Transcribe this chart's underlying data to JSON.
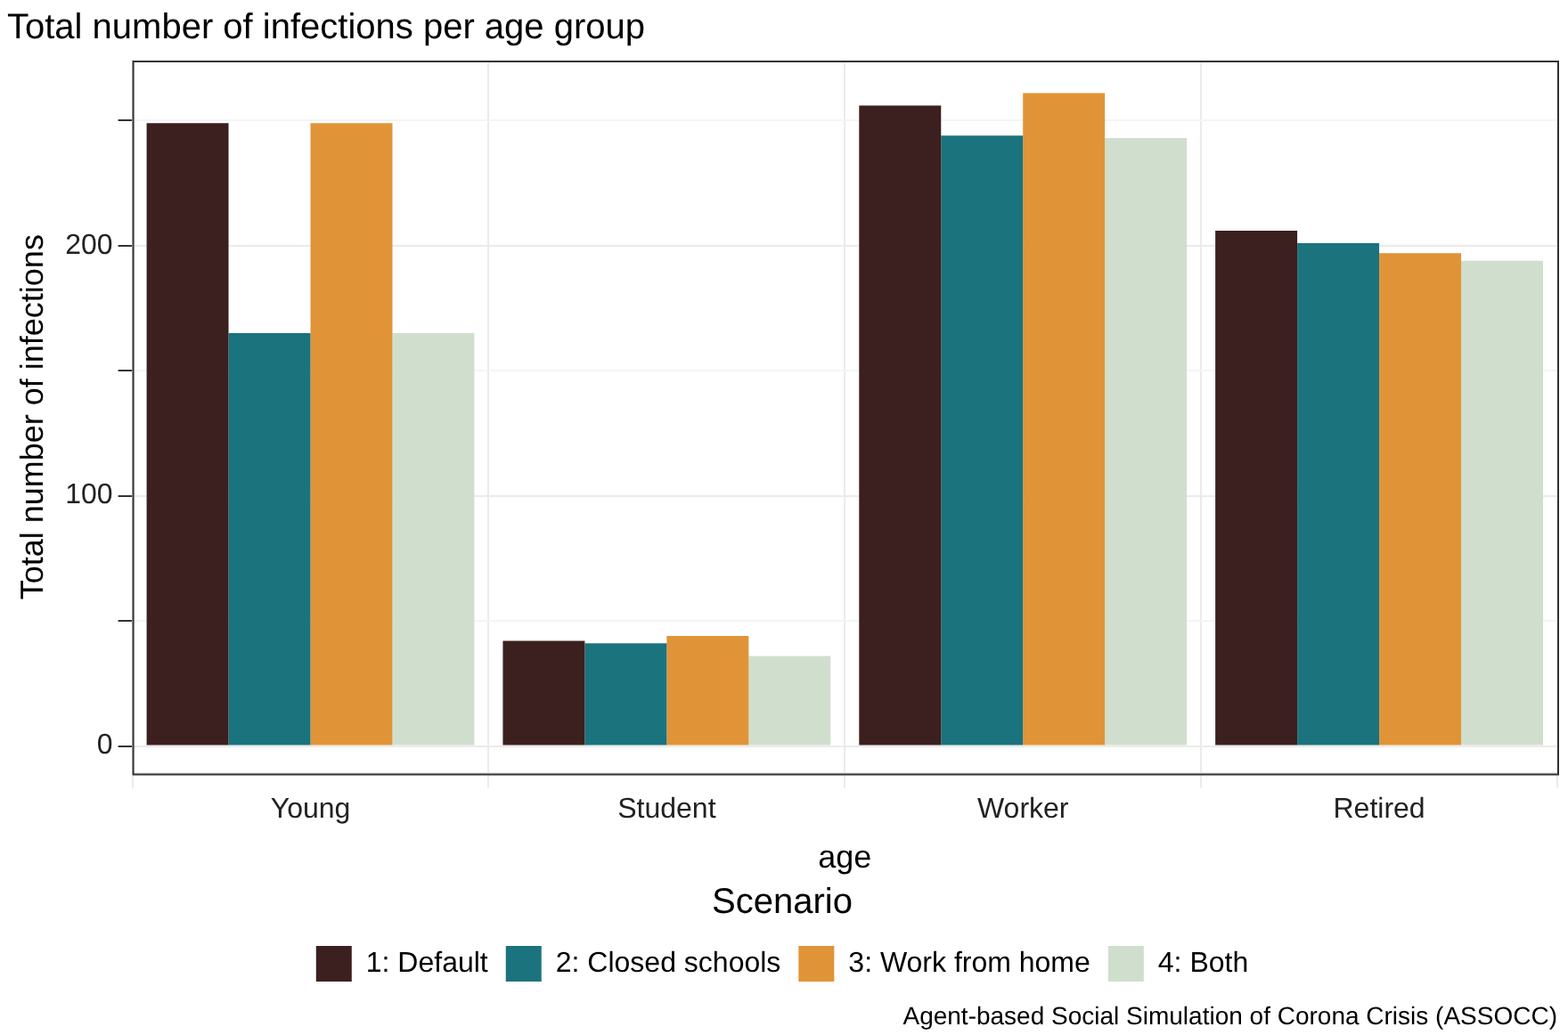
{
  "chart_data": {
    "type": "bar",
    "title": "Total number of infections per age group",
    "xlabel": "age",
    "ylabel": "Total number of infections",
    "legend_title": "Scenario",
    "categories": [
      "Young",
      "Student",
      "Worker",
      "Retired"
    ],
    "series": [
      {
        "name": "1: Default",
        "color": "#3c1f1f",
        "values": [
          249,
          42,
          256,
          206
        ]
      },
      {
        "name": "2: Closed schools",
        "color": "#1b737d",
        "values": [
          165,
          41,
          244,
          201
        ]
      },
      {
        "name": "3: Work from home",
        "color": "#e09437",
        "values": [
          249,
          44,
          261,
          197
        ]
      },
      {
        "name": "4: Both",
        "color": "#d0dfcd",
        "values": [
          165,
          36,
          243,
          194
        ]
      }
    ],
    "ylim": [
      -11,
      274
    ],
    "yticks": [
      0,
      {
        "value": 50,
        "label": null
      },
      100,
      {
        "value": 150,
        "label": null
      },
      200,
      {
        "value": 250,
        "label": null
      }
    ],
    "grid": true,
    "legend": "bottom",
    "annotations": [
      "Agent-based Social Simulation of Corona Crisis (ASSOCC)"
    ]
  }
}
